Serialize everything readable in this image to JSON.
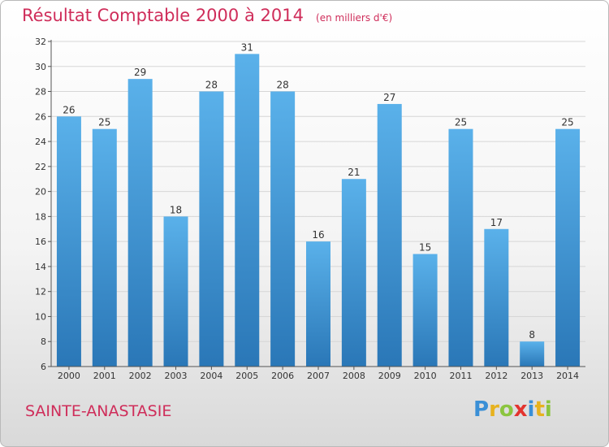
{
  "title": "Résultat Comptable 2000 à 2014",
  "unit": "(en milliers d'€)",
  "town": "SAINTE-ANASTASIE",
  "logo": {
    "letters": [
      "P",
      "r",
      "o",
      "x",
      "i",
      "t",
      "i"
    ],
    "colors": [
      "#3a8fd6",
      "#e7b21e",
      "#8bc53f",
      "#e3342f",
      "#3a8fd6",
      "#e7b21e",
      "#8bc53f"
    ]
  },
  "colors": {
    "bar_top": "#5ab1ea",
    "bar_bottom": "#2a77b7",
    "title": "#cf2d5a"
  },
  "chart_data": {
    "type": "bar",
    "title": "Résultat Comptable 2000 à 2014",
    "xlabel": "",
    "ylabel": "",
    "categories": [
      "2000",
      "2001",
      "2002",
      "2003",
      "2004",
      "2005",
      "2006",
      "2007",
      "2008",
      "2009",
      "2010",
      "2011",
      "2012",
      "2013",
      "2014"
    ],
    "values": [
      26,
      25,
      29,
      18,
      28,
      31,
      28,
      16,
      21,
      27,
      15,
      25,
      17,
      8,
      25
    ],
    "ylim": [
      6,
      32
    ],
    "yticks": [
      6,
      8,
      10,
      12,
      14,
      16,
      18,
      20,
      22,
      24,
      26,
      28,
      30,
      32
    ],
    "grid": true
  }
}
